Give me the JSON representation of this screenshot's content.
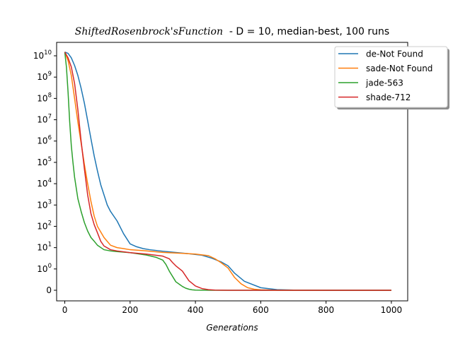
{
  "chart_data": {
    "type": "line",
    "title_italic": "ShiftedRosenbrock'sFunction",
    "title_rest": "  - D = 10, median-best, 100 runs",
    "xlabel": "Generations",
    "ylabel": "",
    "xlim": [
      -25,
      1050
    ],
    "xticks": [
      0,
      200,
      400,
      600,
      800,
      1000
    ],
    "yscale": "symlog",
    "yticks": [
      {
        "value": 0,
        "base": "0",
        "exp": ""
      },
      {
        "value": 1,
        "base": "10",
        "exp": "0"
      },
      {
        "value": 10,
        "base": "10",
        "exp": "1"
      },
      {
        "value": 100,
        "base": "10",
        "exp": "2"
      },
      {
        "value": 1000,
        "base": "10",
        "exp": "3"
      },
      {
        "value": 10000,
        "base": "10",
        "exp": "4"
      },
      {
        "value": 100000,
        "base": "10",
        "exp": "5"
      },
      {
        "value": 1000000,
        "base": "10",
        "exp": "6"
      },
      {
        "value": 10000000,
        "base": "10",
        "exp": "7"
      },
      {
        "value": 100000000,
        "base": "10",
        "exp": "8"
      },
      {
        "value": 1000000000,
        "base": "10",
        "exp": "9"
      },
      {
        "value": 10000000000,
        "base": "10",
        "exp": "10"
      }
    ],
    "grid": false,
    "legend_position": "top-right",
    "series": [
      {
        "name": "de-Not Found",
        "color": "#1f77b4",
        "x": [
          0,
          10,
          20,
          30,
          40,
          50,
          60,
          70,
          80,
          90,
          100,
          110,
          120,
          130,
          140,
          160,
          180,
          200,
          220,
          240,
          260,
          300,
          340,
          380,
          420,
          450,
          480,
          500,
          520,
          550,
          600,
          650,
          700,
          800,
          900,
          1000
        ],
        "y": [
          15000000000,
          13000000000,
          8000000000,
          3500000000,
          1200000000,
          300000000,
          60000000,
          9000000,
          1300000,
          200000,
          40000,
          9000,
          3000,
          1000,
          500,
          180,
          45,
          15,
          11,
          9,
          8,
          6.8,
          5.9,
          5.2,
          4.4,
          3.2,
          2.1,
          1.4,
          0.8,
          0.42,
          0.12,
          0.03,
          0.008,
          0.002,
          0.001,
          0.001
        ]
      },
      {
        "name": "sade-Not Found",
        "color": "#ff7f0e",
        "x": [
          0,
          10,
          20,
          30,
          40,
          50,
          60,
          70,
          80,
          90,
          100,
          120,
          140,
          160,
          180,
          200,
          250,
          300,
          350,
          400,
          440,
          460,
          480,
          500,
          520,
          540,
          560,
          580,
          600,
          650,
          700,
          800,
          900,
          1000
        ],
        "y": [
          15000000000,
          6000000000,
          1200000000,
          100000000,
          8000000,
          800000,
          80000,
          10000,
          1500,
          300,
          100,
          30,
          13,
          10,
          9,
          8,
          7,
          6,
          5.5,
          5,
          4.2,
          3,
          1.9,
          1.1,
          0.6,
          0.3,
          0.12,
          0.05,
          0.02,
          0.004,
          0.001,
          0.001,
          0.001,
          0.001
        ]
      },
      {
        "name": "jade-563",
        "color": "#2ca02c",
        "x": [
          0,
          5,
          10,
          15,
          20,
          25,
          30,
          40,
          50,
          60,
          70,
          80,
          90,
          100,
          120,
          140,
          160,
          200,
          250,
          280,
          300,
          310,
          320,
          340,
          360,
          370,
          380,
          390,
          400,
          420,
          450,
          500,
          600,
          700,
          800,
          900,
          1000
        ],
        "y": [
          15000000000,
          3000000000,
          200000000,
          8000000,
          600000,
          100000,
          20000,
          2000,
          500,
          150,
          60,
          30,
          20,
          13,
          8,
          7,
          6.5,
          5.8,
          4.5,
          3.5,
          2.6,
          1.6,
          0.9,
          0.4,
          0.18,
          0.1,
          0.05,
          0.02,
          0.01,
          0.004,
          0.001,
          0.001,
          0.001,
          0.001,
          0.001,
          0.001,
          0.001
        ]
      },
      {
        "name": "shade-712",
        "color": "#d62728",
        "x": [
          0,
          10,
          20,
          30,
          40,
          50,
          60,
          70,
          80,
          90,
          100,
          110,
          120,
          140,
          160,
          200,
          250,
          300,
          320,
          330,
          340,
          360,
          380,
          400,
          420,
          440,
          460,
          480,
          500,
          600,
          700,
          800,
          900,
          1000
        ],
        "y": [
          15000000000,
          8000000000,
          3000000000,
          500000000,
          30000000,
          1000000,
          50000,
          3000,
          400,
          120,
          50,
          20,
          12,
          8,
          7,
          5.8,
          5,
          4,
          3,
          2,
          1.4,
          0.9,
          0.45,
          0.2,
          0.08,
          0.03,
          0.01,
          0.005,
          0.002,
          0.001,
          0.001,
          0.001,
          0.001,
          0.001
        ]
      }
    ]
  }
}
